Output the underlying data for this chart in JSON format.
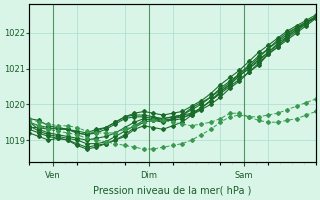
{
  "title": "",
  "xlabel": "Pression niveau de la mer( hPa )",
  "ylabel": "",
  "bg_color": "#d8f5e8",
  "plot_bg_color": "#d8f5e8",
  "grid_color": "#aaddcc",
  "line_color_main": "#1a6b2a",
  "line_color_light": "#3a9950",
  "tick_label_color": "#1a5c28",
  "xlabel_color": "#1a5c28",
  "ylim": [
    1018.4,
    1022.8
  ],
  "yticks": [
    1019,
    1020,
    1021,
    1022
  ],
  "xtick_positions": [
    0,
    24,
    48,
    72,
    96,
    120,
    144
  ],
  "xtick_labels_pos": [
    12,
    60,
    108
  ],
  "xtick_labels": [
    "Ven",
    "Dim",
    "Sam"
  ],
  "series": [
    [
      1019.2,
      1019.1,
      1019.0,
      1019.05,
      1019.0,
      1018.85,
      1018.75,
      1018.8,
      1018.9,
      1019.0,
      1019.1,
      1019.3,
      1019.4,
      1019.35,
      1019.3,
      1019.4,
      1019.5,
      1019.7,
      1019.9,
      1020.1,
      1020.3,
      1020.5,
      1020.7,
      1020.9,
      1021.1,
      1021.4,
      1021.6,
      1021.9,
      1022.1,
      1022.3,
      1022.4
    ],
    [
      1019.5,
      1019.3,
      1019.2,
      1019.15,
      1019.1,
      1019.05,
      1019.0,
      1019.05,
      1019.1,
      1019.2,
      1019.35,
      1019.5,
      1019.6,
      1019.55,
      1019.5,
      1019.6,
      1019.7,
      1019.9,
      1020.05,
      1020.2,
      1020.4,
      1020.6,
      1020.85,
      1021.05,
      1021.3,
      1021.55,
      1021.8,
      1022.0,
      1022.15,
      1022.3,
      1022.45
    ],
    [
      1019.6,
      1019.55,
      1019.4,
      1019.35,
      1019.3,
      1019.25,
      1019.2,
      1019.3,
      1019.35,
      1019.5,
      1019.65,
      1019.75,
      1019.8,
      1019.75,
      1019.7,
      1019.75,
      1019.8,
      1019.95,
      1020.1,
      1020.3,
      1020.55,
      1020.75,
      1020.95,
      1021.2,
      1021.45,
      1021.65,
      1021.85,
      1022.05,
      1022.2,
      1022.35,
      1022.5
    ],
    [
      1019.3,
      1019.2,
      1019.1,
      1019.05,
      1019.0,
      1018.9,
      1018.8,
      1018.85,
      1018.9,
      1019.0,
      1019.15,
      1019.35,
      1019.5,
      1019.55,
      1019.55,
      1019.6,
      1019.65,
      1019.7,
      1019.85,
      1020.0,
      1020.2,
      1020.45,
      1020.65,
      1020.9,
      1021.15,
      1021.4,
      1021.6,
      1021.8,
      1022.0,
      1022.2,
      1022.4
    ],
    [
      1019.4,
      1019.25,
      1019.15,
      1019.1,
      1019.05,
      1019.0,
      1018.9,
      1018.9,
      1018.95,
      1019.1,
      1019.25,
      1019.4,
      1019.55,
      1019.6,
      1019.6,
      1019.65,
      1019.7,
      1019.75,
      1019.9,
      1020.1,
      1020.35,
      1020.55,
      1020.8,
      1021.0,
      1021.2,
      1021.45,
      1021.7,
      1021.9,
      1022.1,
      1022.25,
      1022.45
    ],
    [
      1019.35,
      1019.35,
      1019.3,
      1019.35,
      1019.3,
      1019.2,
      1019.15,
      1019.25,
      1019.35,
      1019.5,
      1019.65,
      1019.7,
      1019.7,
      1019.65,
      1019.6,
      1019.65,
      1019.7,
      1019.85,
      1020.0,
      1020.2,
      1020.45,
      1020.65,
      1020.85,
      1021.1,
      1021.35,
      1021.55,
      1021.75,
      1021.95,
      1022.15,
      1022.3,
      1022.45
    ],
    [
      1019.5,
      1019.4,
      1019.35,
      1019.3,
      1019.3,
      1019.2,
      1019.15,
      1019.2,
      1019.3,
      1019.45,
      1019.6,
      1019.65,
      1019.65,
      1019.6,
      1019.55,
      1019.55,
      1019.6,
      1019.75,
      1019.9,
      1020.1,
      1020.35,
      1020.55,
      1020.8,
      1021.0,
      1021.25,
      1021.45,
      1021.65,
      1021.85,
      1022.05,
      1022.25,
      1022.45
    ]
  ],
  "outlier_series": [
    [
      1019.5,
      1019.4,
      1019.3,
      1019.25,
      1019.2,
      1019.15,
      1019.05,
      1019.0,
      1018.95,
      1018.9,
      1018.85,
      1018.8,
      1018.75,
      1018.75,
      1018.8,
      1018.85,
      1018.9,
      1019.0,
      1019.15,
      1019.3,
      1019.5,
      1019.65,
      1019.7,
      1019.65,
      1019.65,
      1019.7,
      1019.75,
      1019.85,
      1019.95,
      1020.05,
      1020.15
    ],
    [
      1019.6,
      1019.5,
      1019.45,
      1019.4,
      1019.4,
      1019.35,
      1019.25,
      1019.2,
      1019.2,
      1019.2,
      1019.3,
      1019.4,
      1019.5,
      1019.55,
      1019.55,
      1019.5,
      1019.45,
      1019.4,
      1019.45,
      1019.5,
      1019.6,
      1019.75,
      1019.75,
      1019.65,
      1019.55,
      1019.5,
      1019.5,
      1019.55,
      1019.6,
      1019.7,
      1019.8
    ]
  ]
}
